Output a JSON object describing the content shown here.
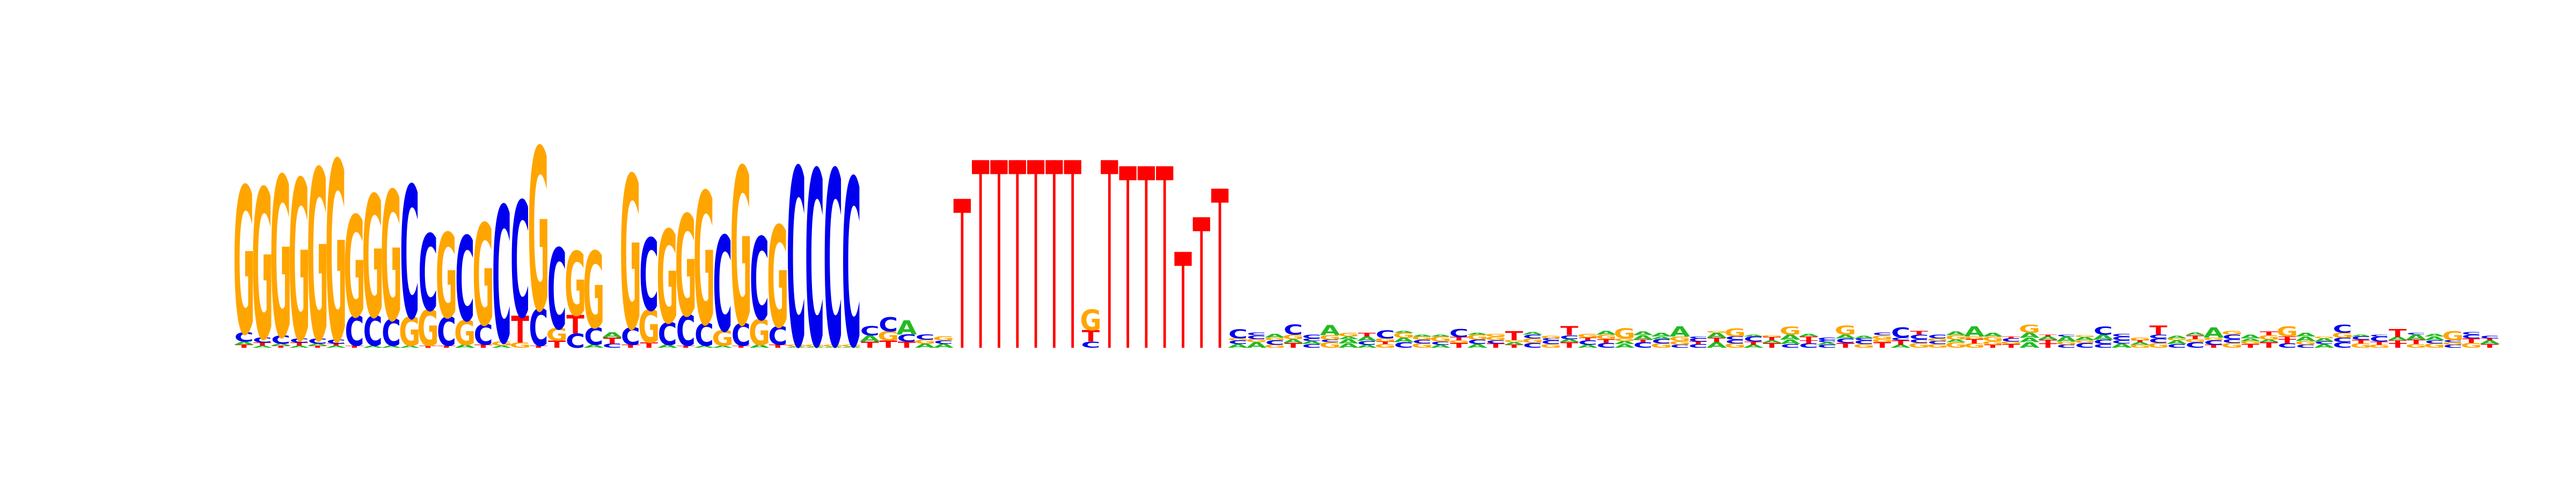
{
  "logo": {
    "alphabet": [
      "A",
      "C",
      "G",
      "T"
    ],
    "colors": {
      "A": "#22bb22",
      "C": "#0000ee",
      "G": "#ffa500",
      "T": "#ff0000"
    },
    "max_bits": 2,
    "positions": [
      [
        [
          "T",
          0.03
        ],
        [
          "A",
          0.03
        ],
        [
          "C",
          0.09
        ],
        [
          "G",
          1.42
        ]
      ],
      [
        [
          "A",
          0.02
        ],
        [
          "T",
          0.03
        ],
        [
          "C",
          0.05
        ],
        [
          "G",
          1.45
        ]
      ],
      [
        [
          "T",
          0.02
        ],
        [
          "A",
          0.02
        ],
        [
          "C",
          0.08
        ],
        [
          "G",
          1.55
        ]
      ],
      [
        [
          "A",
          0.02
        ],
        [
          "T",
          0.03
        ],
        [
          "C",
          0.04
        ],
        [
          "G",
          1.55
        ]
      ],
      [
        [
          "T",
          0.02
        ],
        [
          "A",
          0.02
        ],
        [
          "C",
          0.05
        ],
        [
          "G",
          1.65
        ]
      ],
      [
        [
          "A",
          0.02
        ],
        [
          "T",
          0.02
        ],
        [
          "C",
          0.04
        ],
        [
          "G",
          1.74
        ]
      ],
      [
        [
          "T",
          0.02
        ],
        [
          "C",
          0.29
        ],
        [
          "G",
          0.98
        ]
      ],
      [
        [
          "A",
          0.02
        ],
        [
          "C",
          0.29
        ],
        [
          "G",
          1.18
        ]
      ],
      [
        [
          "A",
          0.02
        ],
        [
          "C",
          0.26
        ],
        [
          "G",
          1.25
        ]
      ],
      [
        [
          "A",
          0.02
        ],
        [
          "G",
          0.28
        ],
        [
          "C",
          1.28
        ]
      ],
      [
        [
          "T",
          0.02
        ],
        [
          "G",
          0.35
        ],
        [
          "C",
          0.74
        ]
      ],
      [
        [
          "T",
          0.02
        ],
        [
          "C",
          0.28
        ],
        [
          "G",
          0.82
        ]
      ],
      [
        [
          "A",
          0.03
        ],
        [
          "G",
          0.24
        ],
        [
          "C",
          0.82
        ]
      ],
      [
        [
          "T",
          0.03
        ],
        [
          "C",
          0.2
        ],
        [
          "G",
          0.98
        ]
      ],
      [
        [
          "A",
          0.02
        ],
        [
          "G",
          0.04
        ],
        [
          "C",
          1.32
        ]
      ],
      [
        [
          "G",
          0.05
        ],
        [
          "T",
          0.26
        ],
        [
          "C",
          1.12
        ]
      ],
      [
        [
          "T",
          0.02
        ],
        [
          "C",
          0.36
        ],
        [
          "G",
          1.57
        ]
      ],
      [
        [
          "T",
          0.07
        ],
        [
          "G",
          0.12
        ],
        [
          "C",
          0.78
        ]
      ],
      [
        [
          "C",
          0.14
        ],
        [
          "T",
          0.18
        ],
        [
          "G",
          0.62
        ]
      ],
      [
        [
          "A",
          0.03
        ],
        [
          "C",
          0.17
        ],
        [
          "G",
          0.74
        ]
      ],
      [
        [
          "C",
          0.04
        ],
        [
          "T",
          0.06
        ],
        [
          "A",
          0.05
        ]
      ],
      [
        [
          "T",
          0.03
        ],
        [
          "C",
          0.17
        ],
        [
          "G",
          1.48
        ]
      ],
      [
        [
          "T",
          0.05
        ],
        [
          "G",
          0.32
        ],
        [
          "C",
          0.7
        ]
      ],
      [
        [
          "A",
          0.03
        ],
        [
          "C",
          0.22
        ],
        [
          "G",
          0.9
        ]
      ],
      [
        [
          "T",
          0.02
        ],
        [
          "C",
          0.3
        ],
        [
          "G",
          0.98
        ]
      ],
      [
        [
          "A",
          0.02
        ],
        [
          "C",
          0.22
        ],
        [
          "G",
          1.28
        ]
      ],
      [
        [
          "A",
          0.02
        ],
        [
          "G",
          0.15
        ],
        [
          "C",
          0.92
        ]
      ],
      [
        [
          "T",
          0.02
        ],
        [
          "C",
          0.22
        ],
        [
          "G",
          1.52
        ]
      ],
      [
        [
          "A",
          0.03
        ],
        [
          "G",
          0.25
        ],
        [
          "C",
          0.8
        ]
      ],
      [
        [
          "T",
          0.03
        ],
        [
          "C",
          0.18
        ],
        [
          "G",
          0.98
        ]
      ],
      [
        [
          "A",
          0.01
        ],
        [
          "G",
          0.02
        ],
        [
          "C",
          1.72
        ]
      ],
      [
        [
          "A",
          0.01
        ],
        [
          "G",
          0.02
        ],
        [
          "C",
          1.7
        ]
      ],
      [
        [
          "A",
          0.01
        ],
        [
          "G",
          0.02
        ],
        [
          "C",
          1.7
        ]
      ],
      [
        [
          "A",
          0.01
        ],
        [
          "G",
          0.02
        ],
        [
          "C",
          1.62
        ]
      ],
      [
        [
          "T",
          0.06
        ],
        [
          "A",
          0.06
        ],
        [
          "C",
          0.09
        ]
      ],
      [
        [
          "T",
          0.07
        ],
        [
          "G",
          0.09
        ],
        [
          "C",
          0.14
        ]
      ],
      [
        [
          "T",
          0.06
        ],
        [
          "C",
          0.07
        ],
        [
          "A",
          0.14
        ]
      ],
      [
        [
          "A",
          0.04
        ],
        [
          "G",
          0.04
        ],
        [
          "C",
          0.05
        ]
      ],
      [
        [
          "A",
          0.04
        ],
        [
          "C",
          0.03
        ],
        [
          "G",
          0.04
        ]
      ],
      [
        [
          "T",
          1.46
        ]
      ],
      [
        [
          "T",
          1.84
        ]
      ],
      [
        [
          "T",
          1.84
        ]
      ],
      [
        [
          "T",
          1.84
        ]
      ],
      [
        [
          "T",
          1.84
        ]
      ],
      [
        [
          "T",
          1.84
        ]
      ],
      [
        [
          "T",
          1.84
        ]
      ],
      [
        [
          "C",
          0.06
        ],
        [
          "T",
          0.11
        ],
        [
          "G",
          0.2
        ]
      ],
      [
        [
          "T",
          1.84
        ]
      ],
      [
        [
          "T",
          1.78
        ]
      ],
      [
        [
          "T",
          1.78
        ]
      ],
      [
        [
          "T",
          1.78
        ]
      ],
      [
        [
          "T",
          0.94
        ]
      ],
      [
        [
          "T",
          1.28
        ]
      ],
      [
        [
          "T",
          1.56
        ]
      ]
    ],
    "tail_letters": "ACGCAGCCGCGATAGCCACCGCGAAAAGACATGTGCCAGAGCGAACGATGTCACGATCGGTAGTCGCAGCCGTACTACTGCTGAAAGGCTAAGCAACGGACTCCATAGGCCGATCATATGCAAGCTTACACCTCAGGCCATGGCATCCGCCTGCGCGAGAGTGATGGATGCTAAAGTTATCGACCGAGCCACACCCGATGGCCTCAGACGTATCGAGCCGTGAATAGTCTTGCGAAACAGCCGCGTCAGTCCTTATGTACGCAACGCGGTCCTATCGGTACATACGGCCTCGGGGTCAGCAAGAATACTGTGACATCGACCCAAGATGGGTACCAATCTAAAAGCGCCATGCGCGGCATGCATCCCATCCTAGAGATGCCGTCCTCATGTCTTAGCCACATCCTCGGTCCGGGTACTGTCCCGGCCAGCGAGCCGTCTATGCCTAATCCGAATCTTGACCTACTGACATTCACAGAGCTAGTTTGGACCTGGAAGTATAAAGTTCCCCAAGCGCGGCAGCAAAACGTCAGAGCTCGGGGCCGTACATGGTATGCTTTCGCCCTTTTCGGCGTGGATAAGACCAGGCAAGAGTAGCTCTTACACATAACAGGGACCTCAGCGAGAGAGTGGCGGTAGTCAAATCTCTTAGGGCAGGACCCTGGCAGTTCTCGTCCAATCTATACTTAAAGGCGTGAATTTACTTGCTGTCGAGACTGGTTGTGCATTTTTCTTATAGCGCACGACCCCGAAACCGCGCCAAAACCCTTTAACCAAAGCTTTTGTATTGGGCGTACTCTAGAGCCGTTGTCCTTCACCTGCTCAATCTCATGAACTTCATTAGCTTCAAACAGCCGCATCTTATCTGCAGCTGCATCTCAAGACAAGACCATCGAAATTCCGCCATCTACAAACTGGTAATCACAAGCTGTCCAGGATACCGACTAATTCAAGTGGGTACCGTGGAATTAAAACCAGACAGTGCCATCACTATGAAAGATAAAAAGTAGTGTCGGTCACCCGTCCTCTGCACAAACAAGGCGGAAAAGAGGCAGTCCTTCAGTTAGGTCAAAGTCCATTCATCGTGTGCCGCGTGGACTTATCCCCATCACTTGGGCACATGGCCGCCTTAAGAGTGCAGACACAGCCGGTAAGAAACTAAACAGAAATCGTAACTAGTACTGATATCGGCCGACAAAAATTGATCATATTCTGGATACGCGCTCAGCGCACTTACCCCGTCATAACGCGTTACACGGGGGTCCCAAAGACACGAGGAGGTTCACGCCAATTTGGTTGTAAACTTGTCTTATACGTTTAACAATCGCCACCACTTAGGCTTACCCTGCAAGGAGAGTTAAGCGTCTAGTGGCTATACATCCAAGTTCACCTTCTCGACGCAAGACGTCCTTGGCATCAGAGAGATTTTGAACTAGCAATATGATGGAAGTTTGGATCAATCATTACACGAAGCTGTCGATGAACCTCACATAACACACGATCAGCATCCCCCGTGTTCGAAAACCGCTCATTCTCCGTACTACCGCATCACGTAGGAAGGAGCATAACAGGCGCCTACACCCTAACATCGGCAGATCAATAAGCCATATACGCCCGACTCTCGAAGCCCCGGTGGTAACTGAGTATGCTCTGGTAGAAGCATCTACAATAAGAGGAATTTCACCTAGTAGCTTTCAGCTTTCTCCCGACTATTCAACTAAGAAAGATGTCACGTCCTCCGATCTTACACGCCAGACCCTTCCAAACTAGCTTCTCCAATCCCTATGCTGTGGTCTCGGAATTCTGACACCTACTGCGCACGTGGTACGTAGCCTATACCCCAAAAGGAGTTCACAGCACAAAGCATCCATCACTGAAGTTCCGCTACCAGCGATCTCGGTAGGTCGGTACTACCACGGTCAACCTCACGTTTAGTGTGTAAAATGGGGCGACTAGCTCCGTTTACCTAAAAACCGTGACCTGATGGTTCGGAAGCACAGTCTACATGCTACCAGTCCGTCTACAAATCTCCGGGACGCACCAAGCCGCTGCACAAGAGATTGCGCAAGACGGTCTGATGCAGTTGGTCAGAGCAGAATTGATTGCTATCTGTACCTAGCACTCGCTCTTCAGAACGTCTGAGGCACGCCGAGGCCCAGCGTGAGACAAGTAAGGTATGTGGGGACGGCATGAGCCCTCCCGGCATATTCAGATCAGCTAAGAAGGGAATCGAGATCAAAGTAGCAGGATCTACACATCACATCACATGCCAAACTATCAATATCATCACCCTCTAAATCTTTCCTCATGTGTCCTAAGACTTGAGATAGCCACCCAAGAATCCCTCCGACAGATCGCCTTACAGGCCTCCACTACGACTAGTGTCCAACATCAAATCCCTTTCCCCCGAACCCACCGAAATATCGATCCCACACCTACCAGGTCGAAATCGCCGCTTCAACCTTACTCTTACACCCTAGCGAGCCTAGCAGCCACGATCTCCCACTGTCCAAACTAAAGGTAGCAGTATATACGGTAGCACCAGCTAACATTACCAACTTTGAGAACACTCAAACATGAAGCACCAAGCATCATCGGCCCTCTCCCATACATTGCCGTTGTCTCCTGGACAGACTTTCAGCCGTAGAACCAAAGGTATTTCCATGCACTCCTCTCCAGCTTCATTTTCTTCAAGTTCCACACATAGTCCCAGCCCTACACCCAGAGGCAATGGAGAACCAACCTTACTGGGACCCTCACCTCATACCTGACCCCACGCCAATGGCACTACGGCCCCAAGCTAGAGCACCCAGGCACTTCTAACATCCTCACGCTTACCTGCCCAAACAGGTGCCCACTGTACACAGGCACCACCAAGCACTCCTATGCCCGCACCACCCCAACCCGAAAGTTCCACTGGCACCACTTGAGCCGGAACCTCAGCCCATCTGGCAC"
  }
}
